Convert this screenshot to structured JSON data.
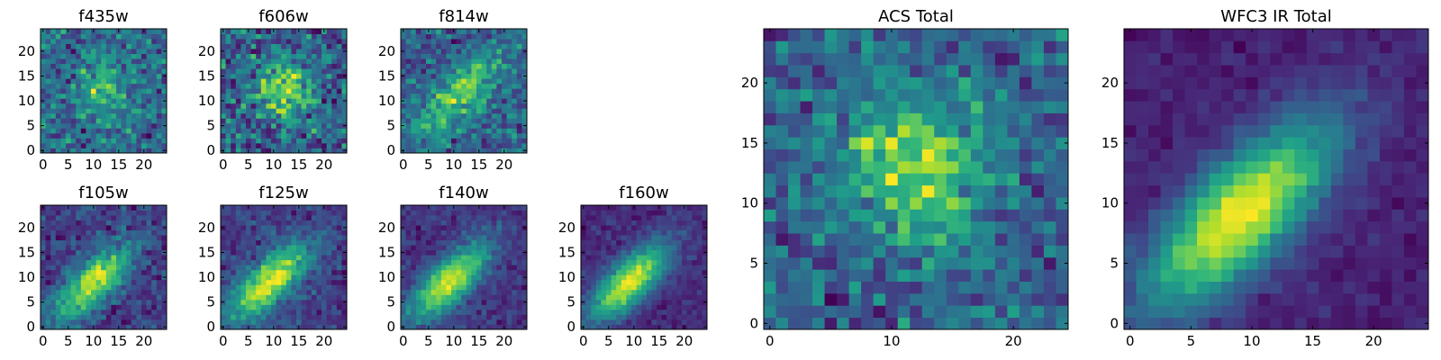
{
  "chart_data": [
    {
      "type": "heatmap",
      "title": "f435w",
      "xticks": [
        "0",
        "5",
        "10",
        "15",
        "20"
      ],
      "yticks": [
        "0",
        "5",
        "10",
        "15",
        "20"
      ],
      "xlim": [
        -0.5,
        24.5
      ],
      "ylim": [
        -0.5,
        24.5
      ],
      "grid": false,
      "colormap": "viridis",
      "signal": {
        "pattern": "blob",
        "cx": 12,
        "cy": 13,
        "strength": 0.35,
        "noise": 0.45
      }
    },
    {
      "type": "heatmap",
      "title": "f606w",
      "xticks": [
        "0",
        "5",
        "10",
        "15",
        "20"
      ],
      "yticks": [
        "0",
        "5",
        "10",
        "15",
        "20"
      ],
      "xlim": [
        -0.5,
        24.5
      ],
      "ylim": [
        -0.5,
        24.5
      ],
      "grid": false,
      "colormap": "viridis",
      "signal": {
        "pattern": "blob",
        "cx": 12,
        "cy": 12,
        "strength": 0.5,
        "noise": 0.45
      }
    },
    {
      "type": "heatmap",
      "title": "f814w",
      "xticks": [
        "0",
        "5",
        "10",
        "15",
        "20"
      ],
      "yticks": [
        "0",
        "5",
        "10",
        "15",
        "20"
      ],
      "xlim": [
        -0.5,
        24.5
      ],
      "ylim": [
        -0.5,
        24.5
      ],
      "grid": false,
      "colormap": "viridis",
      "signal": {
        "pattern": "diagonal",
        "cx": 11,
        "cy": 11,
        "strength": 0.55,
        "noise": 0.42
      }
    },
    {
      "type": "heatmap",
      "title": "f105w",
      "xticks": [
        "0",
        "5",
        "10",
        "15",
        "20"
      ],
      "yticks": [
        "0",
        "5",
        "10",
        "15",
        "20"
      ],
      "xlim": [
        -0.5,
        24.5
      ],
      "ylim": [
        -0.5,
        24.5
      ],
      "grid": false,
      "colormap": "viridis",
      "signal": {
        "pattern": "diagonal",
        "cx": 10,
        "cy": 9,
        "strength": 0.75,
        "noise": 0.25
      }
    },
    {
      "type": "heatmap",
      "title": "f125w",
      "xticks": [
        "0",
        "5",
        "10",
        "15",
        "20"
      ],
      "yticks": [
        "0",
        "5",
        "10",
        "15",
        "20"
      ],
      "xlim": [
        -0.5,
        24.5
      ],
      "ylim": [
        -0.5,
        24.5
      ],
      "grid": false,
      "colormap": "viridis",
      "signal": {
        "pattern": "diagonal",
        "cx": 9,
        "cy": 9,
        "strength": 0.8,
        "noise": 0.22
      }
    },
    {
      "type": "heatmap",
      "title": "f140w",
      "xticks": [
        "0",
        "5",
        "10",
        "15",
        "20"
      ],
      "yticks": [
        "0",
        "5",
        "10",
        "15",
        "20"
      ],
      "xlim": [
        -0.5,
        24.5
      ],
      "ylim": [
        -0.5,
        24.5
      ],
      "grid": false,
      "colormap": "viridis",
      "signal": {
        "pattern": "diagonal",
        "cx": 9,
        "cy": 9,
        "strength": 0.85,
        "noise": 0.18
      }
    },
    {
      "type": "heatmap",
      "title": "f160w",
      "xticks": [
        "0",
        "5",
        "10",
        "15",
        "20"
      ],
      "yticks": [
        "0",
        "5",
        "10",
        "15",
        "20"
      ],
      "xlim": [
        -0.5,
        24.5
      ],
      "ylim": [
        -0.5,
        24.5
      ],
      "grid": false,
      "colormap": "viridis",
      "signal": {
        "pattern": "diagonal",
        "cx": 9,
        "cy": 9,
        "strength": 0.9,
        "noise": 0.15
      }
    },
    {
      "type": "heatmap",
      "title": "ACS Total",
      "xticks": [
        "0",
        "10",
        "20"
      ],
      "yticks": [
        "0",
        "5",
        "10",
        "15",
        "20"
      ],
      "xlim": [
        -0.5,
        24.5
      ],
      "ylim": [
        -0.5,
        24.5
      ],
      "grid": false,
      "colormap": "viridis",
      "signal": {
        "pattern": "blob",
        "cx": 12,
        "cy": 13,
        "strength": 0.45,
        "noise": 0.3
      }
    },
    {
      "type": "heatmap",
      "title": "WFC3 IR Total",
      "xticks": [
        "0",
        "5",
        "10",
        "15",
        "20"
      ],
      "yticks": [
        "0",
        "5",
        "10",
        "15",
        "20"
      ],
      "xlim": [
        -0.5,
        24.5
      ],
      "ylim": [
        -0.5,
        24.5
      ],
      "grid": false,
      "colormap": "viridis",
      "signal": {
        "pattern": "diagonal",
        "cx": 9,
        "cy": 9,
        "strength": 0.9,
        "noise": 0.1
      }
    }
  ]
}
